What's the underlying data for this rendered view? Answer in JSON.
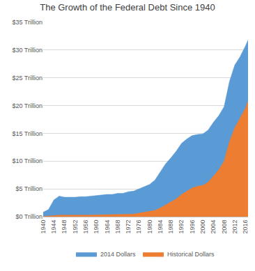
{
  "chart_data": {
    "type": "area",
    "title": "The Growth of the Federal Debt Since 1940",
    "x": [
      1940,
      1942,
      1944,
      1946,
      1948,
      1950,
      1952,
      1954,
      1956,
      1958,
      1960,
      1962,
      1964,
      1966,
      1968,
      1970,
      1972,
      1974,
      1976,
      1978,
      1980,
      1982,
      1984,
      1986,
      1988,
      1990,
      1992,
      1994,
      1996,
      1998,
      2000,
      2002,
      2004,
      2006,
      2008,
      2010,
      2012,
      2014,
      2016,
      2017
    ],
    "series": [
      {
        "name": "2014 Dollars",
        "color": "#5b9bd5",
        "values": [
          0.8,
          1.3,
          3.0,
          3.7,
          3.5,
          3.5,
          3.5,
          3.6,
          3.6,
          3.7,
          3.8,
          3.9,
          4.0,
          4.0,
          4.2,
          4.2,
          4.5,
          4.6,
          5.0,
          5.4,
          5.8,
          6.6,
          8.0,
          9.5,
          10.6,
          11.8,
          13.2,
          14.0,
          14.6,
          14.8,
          14.9,
          15.6,
          17.0,
          18.2,
          19.8,
          24.3,
          27.3,
          28.8,
          30.7,
          31.8
        ]
      },
      {
        "name": "Historical Dollars",
        "color": "#ed7d31",
        "values": [
          0.05,
          0.08,
          0.2,
          0.27,
          0.25,
          0.26,
          0.26,
          0.27,
          0.27,
          0.28,
          0.29,
          0.3,
          0.32,
          0.33,
          0.35,
          0.38,
          0.44,
          0.48,
          0.63,
          0.78,
          0.91,
          1.14,
          1.57,
          2.12,
          2.6,
          3.21,
          4.0,
          4.64,
          5.18,
          5.48,
          5.63,
          6.2,
          7.35,
          8.45,
          10.0,
          13.5,
          16.0,
          17.8,
          19.5,
          20.8
        ]
      }
    ],
    "xlim": [
      1940,
      2017
    ],
    "xticks": [
      1940,
      1944,
      1948,
      1952,
      1956,
      1960,
      1964,
      1968,
      1972,
      1976,
      1980,
      1984,
      1988,
      1992,
      1996,
      2000,
      2004,
      2008,
      2012,
      2016
    ],
    "ylim": [
      0,
      35
    ],
    "yticks": [
      {
        "value": 0,
        "label": "$0 Trillion"
      },
      {
        "value": 5,
        "label": "$5 Trillion"
      },
      {
        "value": 10,
        "label": "$10 Trillion"
      },
      {
        "value": 15,
        "label": "$15 Trillion"
      },
      {
        "value": 20,
        "label": "$20 Trillion"
      },
      {
        "value": 25,
        "label": "$25 Trillion"
      },
      {
        "value": 30,
        "label": "$30 Trillion"
      },
      {
        "value": 35,
        "label": "$35 Trillion"
      }
    ],
    "grid": true,
    "legend": "bottom"
  }
}
